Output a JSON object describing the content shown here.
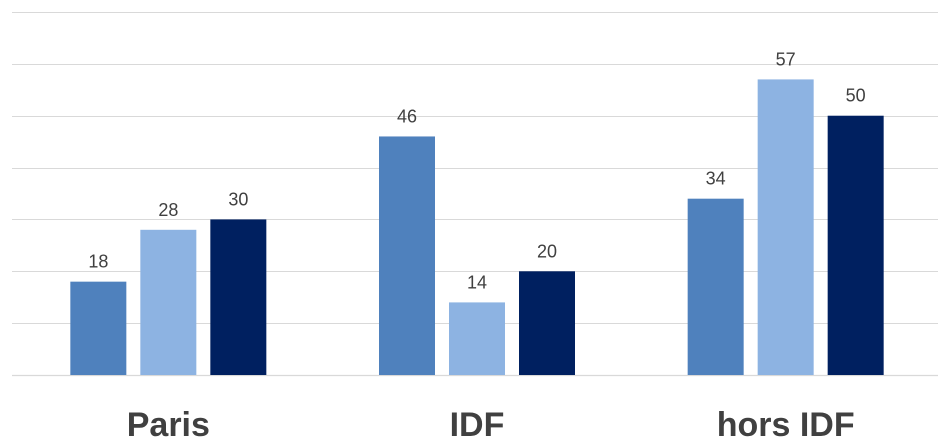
{
  "chart_data": {
    "type": "bar",
    "categories": [
      "Paris",
      "IDF",
      "hors IDF"
    ],
    "series": [
      {
        "values": [
          18,
          46,
          34
        ],
        "color": "#4f81bd"
      },
      {
        "values": [
          28,
          14,
          57
        ],
        "color": "#8db3e2"
      },
      {
        "values": [
          30,
          20,
          50
        ],
        "color": "#002060"
      }
    ],
    "ylim": [
      0,
      70
    ],
    "grid": true,
    "data_labels": true,
    "legend": "none"
  }
}
